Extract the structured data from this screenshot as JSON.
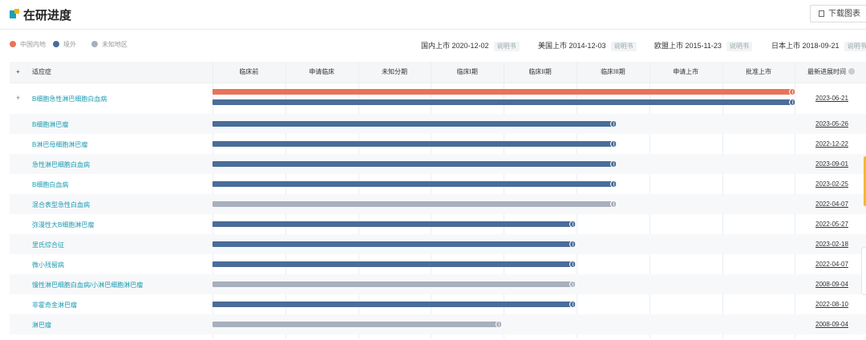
{
  "header": {
    "title": "在研进度",
    "download_label": "下载图表"
  },
  "legend": [
    {
      "label": "中国内地",
      "color": "#e8735a"
    },
    {
      "label": "境外",
      "color": "#4a6d99"
    },
    {
      "label": "未知地区",
      "color": "#a8b0bd"
    }
  ],
  "launches": [
    {
      "label": "国内上市",
      "date": "2020-12-02",
      "tag": "说明书"
    },
    {
      "label": "美国上市",
      "date": "2014-12-03",
      "tag": "说明书"
    },
    {
      "label": "欧盟上市",
      "date": "2015-11-23",
      "tag": "说明书"
    },
    {
      "label": "日本上市",
      "date": "2018-09-21",
      "tag": "说明书"
    }
  ],
  "columns": {
    "expand": "+",
    "indication": "适应症",
    "latest": "最新进展时间"
  },
  "chart_data": {
    "type": "bar",
    "categories": [
      "临床前",
      "申请临床",
      "未知分期",
      "临床I期",
      "临床II期",
      "临床III期",
      "申请上市",
      "批准上市"
    ],
    "rows": [
      {
        "indication": "B细胞急性淋巴细胞白血病",
        "expandable": true,
        "bars": [
          {
            "region": "中国内地",
            "stage": "批准上市"
          },
          {
            "region": "境外",
            "stage": "批准上市"
          }
        ],
        "date": "2023-06-21"
      },
      {
        "indication": "B细胞淋巴瘤",
        "bars": [
          {
            "region": "境外",
            "stage": "临床III期"
          }
        ],
        "date": "2023-05-26"
      },
      {
        "indication": "B淋巴母细胞淋巴瘤",
        "bars": [
          {
            "region": "境外",
            "stage": "临床III期"
          }
        ],
        "date": "2022-12-22"
      },
      {
        "indication": "急性淋巴细胞白血病",
        "bars": [
          {
            "region": "境外",
            "stage": "临床III期"
          }
        ],
        "date": "2023-09-01"
      },
      {
        "indication": "B细胞白血病",
        "bars": [
          {
            "region": "境外",
            "stage": "临床III期"
          }
        ],
        "date": "2023-02-25"
      },
      {
        "indication": "混合表型急性白血病",
        "bars": [
          {
            "region": "未知地区",
            "stage": "临床III期"
          }
        ],
        "date": "2022-04-07"
      },
      {
        "indication": "弥漫性大B细胞淋巴瘤",
        "bars": [
          {
            "region": "境外",
            "stage": "临床II期"
          }
        ],
        "date": "2022-05-27"
      },
      {
        "indication": "里氏综合征",
        "bars": [
          {
            "region": "境外",
            "stage": "临床II期"
          }
        ],
        "date": "2023-02-18"
      },
      {
        "indication": "微小残留病",
        "bars": [
          {
            "region": "境外",
            "stage": "临床II期"
          }
        ],
        "date": "2022-04-07"
      },
      {
        "indication": "慢性淋巴细胞白血病/小淋巴细胞淋巴瘤",
        "bars": [
          {
            "region": "未知地区",
            "stage": "临床II期"
          }
        ],
        "date": "2008-09-04"
      },
      {
        "indication": "非霍奇金淋巴瘤",
        "bars": [
          {
            "region": "境外",
            "stage": "临床II期"
          }
        ],
        "date": "2022-08-10"
      },
      {
        "indication": "淋巴瘤",
        "bars": [
          {
            "region": "未知地区",
            "stage": "临床I期"
          }
        ],
        "date": "2008-09-04"
      }
    ]
  }
}
